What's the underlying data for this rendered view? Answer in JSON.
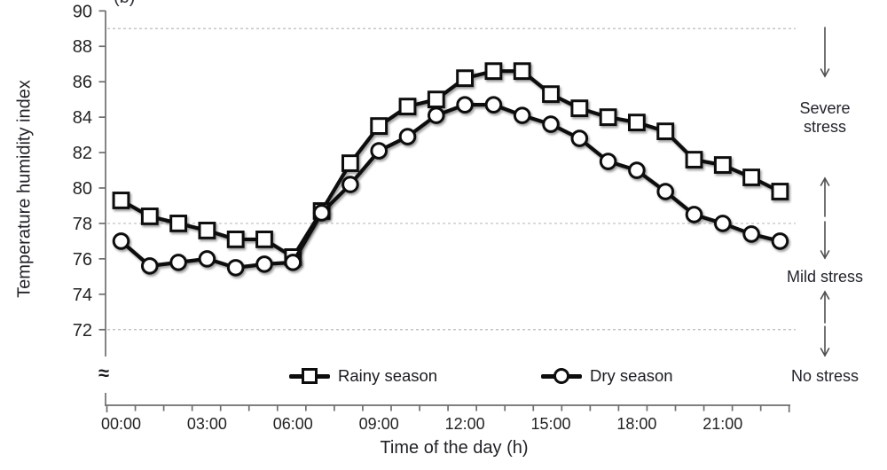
{
  "figure": {
    "panel_label": "(b)"
  },
  "y_axis": {
    "title": "Temperature humidity index",
    "ticks": [
      90,
      88,
      86,
      84,
      82,
      80,
      78,
      76,
      74,
      72
    ],
    "break_symbol": "≈"
  },
  "x_axis": {
    "title": "Time of the day (h)",
    "tick_labels": [
      "00:00",
      "03:00",
      "06:00",
      "09:00",
      "12:00",
      "15:00",
      "18:00",
      "21:00"
    ],
    "tick_label_hours": [
      0,
      3,
      6,
      9,
      12,
      15,
      18,
      21
    ]
  },
  "legend": {
    "items": [
      {
        "label": "Rainy season",
        "marker": "square"
      },
      {
        "label": "Dry season",
        "marker": "circle"
      }
    ]
  },
  "annotations": {
    "severe": "Severe stress",
    "mild": "Mild stress",
    "none": "No stress"
  },
  "colors": {
    "series": "#0d0d0d",
    "marker_fill": "#ffffff",
    "axis": "#6e6e6e",
    "gridline": "#bcbcbc",
    "arrow": "#4f4f4f",
    "text": "#1f2126"
  },
  "chart_data": {
    "type": "line",
    "title": "",
    "xlabel": "Time of the day (h)",
    "ylabel": "Temperature humidity index",
    "x_hours": [
      0,
      1,
      2,
      3,
      4,
      5,
      6,
      7,
      8,
      9,
      10,
      11,
      12,
      13,
      14,
      15,
      16,
      17,
      18,
      19,
      20,
      21,
      22,
      23
    ],
    "ylim": [
      72,
      90
    ],
    "y_axis_break_below": 72,
    "grid_dashed_levels": [
      89,
      78,
      72
    ],
    "legend_position": "bottom-inside",
    "series": [
      {
        "name": "Rainy season",
        "marker": "square",
        "values": [
          79.3,
          78.4,
          78.0,
          77.6,
          77.1,
          77.1,
          76.1,
          78.7,
          81.4,
          83.5,
          84.6,
          85.0,
          86.2,
          86.6,
          86.6,
          85.3,
          84.5,
          84.0,
          83.7,
          83.2,
          81.6,
          81.3,
          80.6,
          79.8
        ]
      },
      {
        "name": "Dry season",
        "marker": "circle",
        "values": [
          77.0,
          75.6,
          75.8,
          76.0,
          75.5,
          75.7,
          75.8,
          78.6,
          80.2,
          82.1,
          82.9,
          84.1,
          84.7,
          84.7,
          84.1,
          83.6,
          82.8,
          81.5,
          81.0,
          79.8,
          78.5,
          78.0,
          77.4,
          77.0
        ]
      }
    ],
    "stress_zones": [
      {
        "label": "Severe stress",
        "between_levels": [
          89,
          78
        ]
      },
      {
        "label": "Mild stress",
        "between_levels": [
          78,
          72
        ]
      },
      {
        "label": "No stress",
        "below_level": 72
      }
    ]
  }
}
